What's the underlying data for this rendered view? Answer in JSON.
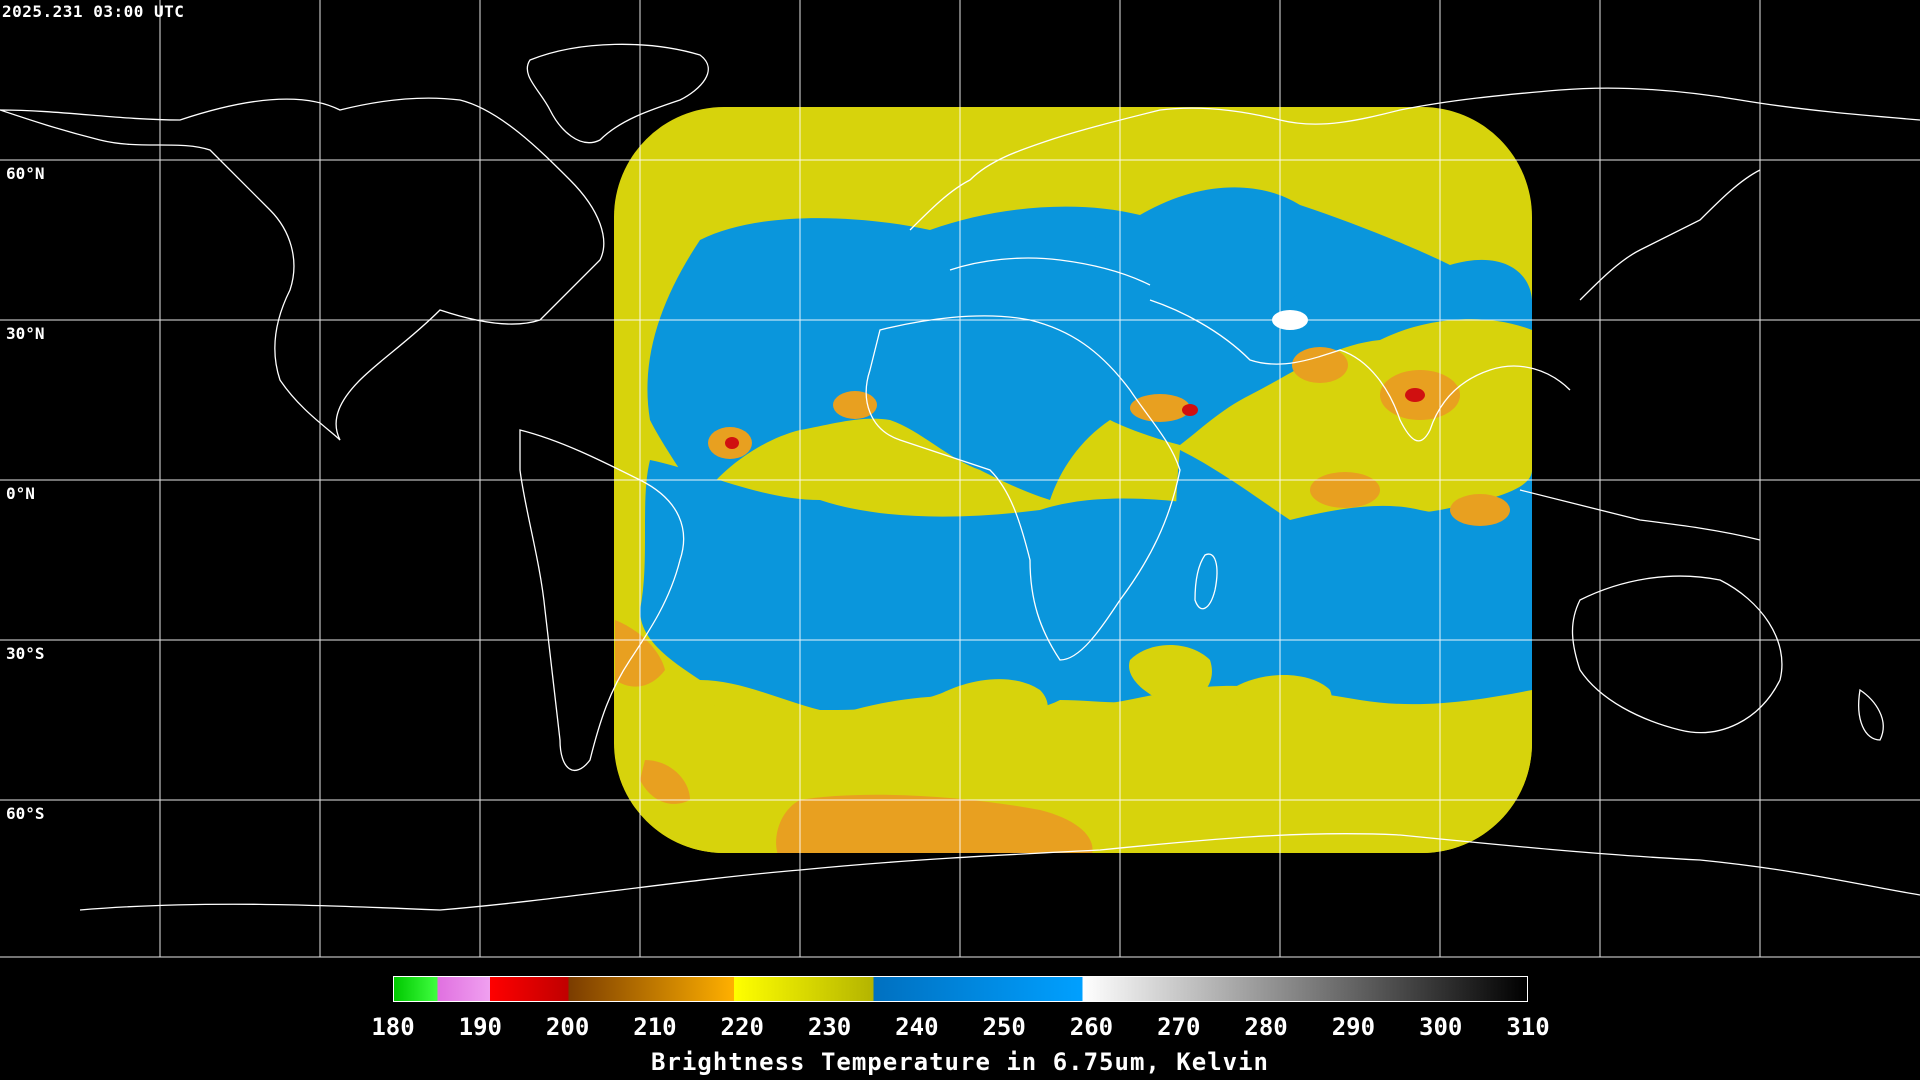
{
  "timestamp": "2025.231 03:00 UTC",
  "map": {
    "projection": "equirectangular",
    "lat_labels": [
      "60°N",
      "30°N",
      "0°N",
      "30°S",
      "60°S"
    ],
    "grid_spacing_deg": 20,
    "coastline_color": "#ffffff",
    "grid_color": "#ffffff",
    "satellite_disk": {
      "description_colors": {
        "dry": "#0a96dc",
        "moist": "#d6d20a",
        "cold_tops": "#e07810",
        "very_cold": "#d41010"
      }
    }
  },
  "colorbar": {
    "ticks": [
      "180",
      "190",
      "200",
      "210",
      "220",
      "230",
      "240",
      "250",
      "260",
      "270",
      "280",
      "290",
      "300",
      "310"
    ],
    "min": 180,
    "max": 310,
    "segments": [
      {
        "from": 180,
        "to": 185,
        "colors": [
          "#00c800",
          "#40ff40"
        ]
      },
      {
        "from": 185,
        "to": 191,
        "colors": [
          "#e070e0",
          "#f0a0f0"
        ]
      },
      {
        "from": 191,
        "to": 200,
        "colors": [
          "#ff0000",
          "#c00000"
        ]
      },
      {
        "from": 200,
        "to": 219,
        "colors": [
          "#7a3c00",
          "#ffb000"
        ]
      },
      {
        "from": 219,
        "to": 235,
        "colors": [
          "#ffff00",
          "#b4b400"
        ]
      },
      {
        "from": 235,
        "to": 259,
        "colors": [
          "#0070c0",
          "#00a0ff"
        ]
      },
      {
        "from": 259,
        "to": 310,
        "colors": [
          "#ffffff",
          "#000000"
        ]
      }
    ],
    "title": "Brightness Temperature in 6.75um, Kelvin"
  }
}
